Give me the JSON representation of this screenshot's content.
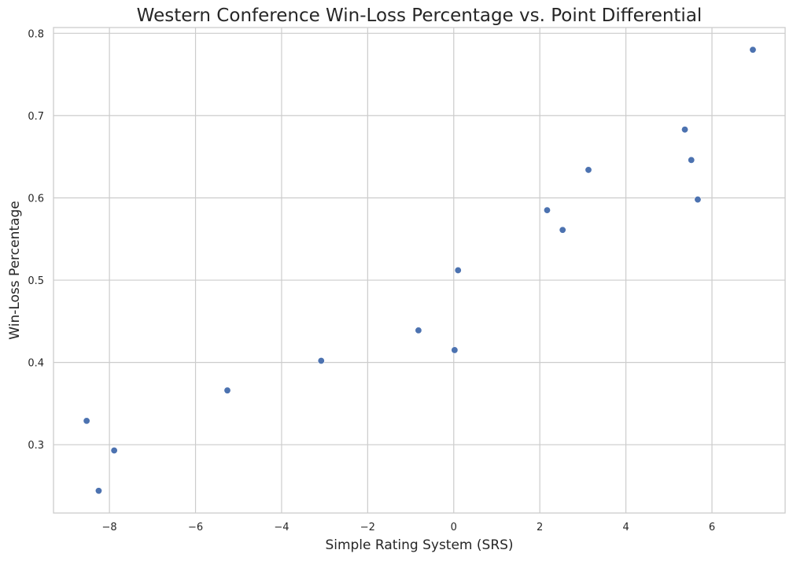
{
  "chart_data": {
    "type": "scatter",
    "title": "Western Conference Win-Loss Percentage vs. Point Differential",
    "xlabel": "Simple Rating System (SRS)",
    "ylabel": "Win-Loss Percentage",
    "xlim": [
      -9.3,
      7.7
    ],
    "ylim": [
      0.217,
      0.807
    ],
    "x_ticks": [
      -8,
      -6,
      -4,
      -2,
      0,
      2,
      4,
      6
    ],
    "x_tick_labels": [
      "−8",
      "−6",
      "−4",
      "−2",
      "0",
      "2",
      "4",
      "6"
    ],
    "y_ticks": [
      0.3,
      0.4,
      0.5,
      0.6,
      0.7,
      0.8
    ],
    "y_tick_labels": [
      "0.3",
      "0.4",
      "0.5",
      "0.6",
      "0.7",
      "0.8"
    ],
    "grid": true,
    "point_color": "#4c72b0",
    "points": [
      {
        "x": 6.95,
        "y": 0.78
      },
      {
        "x": 5.37,
        "y": 0.683
      },
      {
        "x": 5.52,
        "y": 0.646
      },
      {
        "x": 3.13,
        "y": 0.634
      },
      {
        "x": 5.67,
        "y": 0.598
      },
      {
        "x": 2.17,
        "y": 0.585
      },
      {
        "x": 2.53,
        "y": 0.561
      },
      {
        "x": 0.1,
        "y": 0.512
      },
      {
        "x": -0.82,
        "y": 0.439
      },
      {
        "x": 0.02,
        "y": 0.415
      },
      {
        "x": -3.08,
        "y": 0.402
      },
      {
        "x": -5.26,
        "y": 0.366
      },
      {
        "x": -8.53,
        "y": 0.329
      },
      {
        "x": -7.89,
        "y": 0.293
      },
      {
        "x": -8.25,
        "y": 0.244
      }
    ]
  }
}
